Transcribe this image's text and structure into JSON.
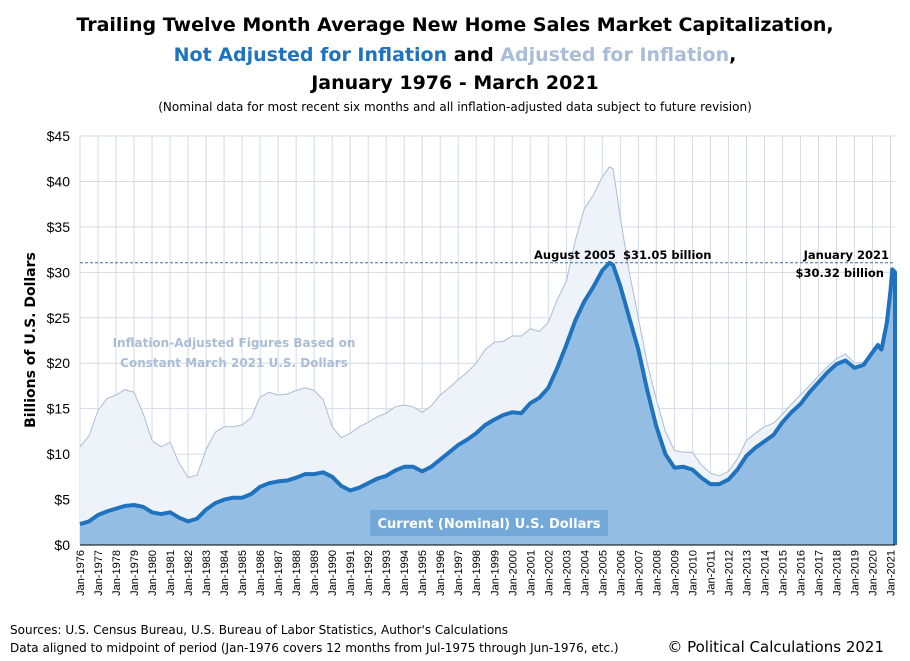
{
  "chart_data": {
    "type": "area",
    "title": {
      "line1": "Trailing Twelve Month Average New Home Sales Market Capitalization,",
      "line2_part1": "Not Adjusted for Inflation",
      "line2_part2": " and ",
      "line2_part3": "Adjusted for Inflation",
      "line2_part4": ",",
      "line3": "January 1976 - March 2021"
    },
    "subtitle": "(Nominal data for most recent six months and all inflation-adjusted data subject to future revision)",
    "ylabel": "Billions of U.S. Dollars",
    "ylim": [
      0,
      45
    ],
    "yticks": [
      0,
      5,
      10,
      15,
      20,
      25,
      30,
      35,
      40,
      45
    ],
    "ytick_labels": [
      "$0",
      "$5",
      "$10",
      "$15",
      "$20",
      "$25",
      "$30",
      "$35",
      "$40",
      "$45"
    ],
    "xlim": [
      1976.0,
      2021.25
    ],
    "xtick_labels": [
      "Jan-1976",
      "Jan-1977",
      "Jan-1978",
      "Jan-1979",
      "Jan-1980",
      "Jan-1981",
      "Jan-1982",
      "Jan-1983",
      "Jan-1984",
      "Jan-1985",
      "Jan-1986",
      "Jan-1987",
      "Jan-1988",
      "Jan-1989",
      "Jan-1990",
      "Jan-1991",
      "Jan-1992",
      "Jan-1993",
      "Jan-1994",
      "Jan-1995",
      "Jan-1996",
      "Jan-1997",
      "Jan-1998",
      "Jan-1999",
      "Jan-2000",
      "Jan-2001",
      "Jan-2002",
      "Jan-2003",
      "Jan-2004",
      "Jan-2005",
      "Jan-2006",
      "Jan-2007",
      "Jan-2008",
      "Jan-2009",
      "Jan-2010",
      "Jan-2011",
      "Jan-2012",
      "Jan-2013",
      "Jan-2014",
      "Jan-2015",
      "Jan-2016",
      "Jan-2017",
      "Jan-2018",
      "Jan-2019",
      "Jan-2020",
      "Jan-2021"
    ],
    "grid": true,
    "reference_line": {
      "value": 31.05,
      "style": "dashed"
    },
    "series": [
      {
        "name": "Adjusted for Inflation",
        "color": "#a9bdd6",
        "fill": "#eef3fa",
        "x": [
          1976.0,
          1976.5,
          1977.0,
          1977.5,
          1978.0,
          1978.5,
          1979.0,
          1979.5,
          1980.0,
          1980.5,
          1981.0,
          1981.5,
          1982.0,
          1982.5,
          1983.0,
          1983.5,
          1984.0,
          1984.5,
          1985.0,
          1985.5,
          1986.0,
          1986.5,
          1987.0,
          1987.5,
          1988.0,
          1988.5,
          1989.0,
          1989.5,
          1990.0,
          1990.5,
          1991.0,
          1991.5,
          1992.0,
          1992.5,
          1993.0,
          1993.5,
          1994.0,
          1994.5,
          1995.0,
          1995.5,
          1996.0,
          1996.5,
          1997.0,
          1997.5,
          1998.0,
          1998.5,
          1999.0,
          1999.5,
          2000.0,
          2000.5,
          2001.0,
          2001.5,
          2002.0,
          2002.5,
          2003.0,
          2003.5,
          2004.0,
          2004.5,
          2005.0,
          2005.4,
          2005.6,
          2006.0,
          2006.5,
          2007.0,
          2007.5,
          2008.0,
          2008.5,
          2009.0,
          2009.5,
          2010.0,
          2010.5,
          2011.0,
          2011.5,
          2012.0,
          2012.5,
          2013.0,
          2013.5,
          2014.0,
          2014.5,
          2015.0,
          2015.5,
          2016.0,
          2016.5,
          2017.0,
          2017.5,
          2018.0,
          2018.5,
          2019.0,
          2019.5,
          2020.0,
          2020.3,
          2020.5,
          2020.8,
          2021.0,
          2021.1,
          2021.25
        ],
        "values": [
          10.8,
          12.0,
          14.8,
          16.1,
          16.5,
          17.1,
          16.8,
          14.5,
          11.5,
          10.8,
          11.3,
          9.0,
          7.4,
          7.7,
          10.5,
          12.4,
          13.0,
          13.0,
          13.2,
          14.0,
          16.3,
          16.8,
          16.5,
          16.6,
          17.0,
          17.3,
          17.0,
          16.0,
          13.0,
          11.8,
          12.3,
          13.0,
          13.5,
          14.1,
          14.5,
          15.2,
          15.4,
          15.2,
          14.6,
          15.3,
          16.5,
          17.3,
          18.2,
          19.0,
          20.0,
          21.5,
          22.3,
          22.4,
          23.0,
          23.0,
          23.8,
          23.5,
          24.5,
          27.0,
          29.0,
          33.5,
          37.0,
          38.5,
          40.5,
          41.6,
          41.4,
          36.0,
          30.0,
          25.0,
          20.0,
          16.0,
          12.5,
          10.4,
          10.2,
          10.2,
          8.8,
          7.9,
          7.6,
          8.1,
          9.5,
          11.5,
          12.3,
          13.0,
          13.4,
          14.4,
          15.5,
          16.5,
          17.5,
          18.6,
          19.6,
          20.5,
          21.0,
          20.0,
          20.1,
          21.4,
          22.0,
          21.7,
          25.0,
          29.0,
          30.5,
          30.2
        ]
      },
      {
        "name": "Current (Nominal) U.S. Dollars",
        "color": "#1f73be",
        "fill": "#94bde3",
        "x": [
          1976.0,
          1976.5,
          1977.0,
          1977.5,
          1978.0,
          1978.5,
          1979.0,
          1979.5,
          1980.0,
          1980.5,
          1981.0,
          1981.5,
          1982.0,
          1982.5,
          1983.0,
          1983.5,
          1984.0,
          1984.5,
          1985.0,
          1985.5,
          1986.0,
          1986.5,
          1987.0,
          1987.5,
          1988.0,
          1988.5,
          1989.0,
          1989.5,
          1990.0,
          1990.5,
          1991.0,
          1991.5,
          1992.0,
          1992.5,
          1993.0,
          1993.5,
          1994.0,
          1994.5,
          1995.0,
          1995.5,
          1996.0,
          1996.5,
          1997.0,
          1997.5,
          1998.0,
          1998.5,
          1999.0,
          1999.5,
          2000.0,
          2000.5,
          2001.0,
          2001.5,
          2002.0,
          2002.5,
          2003.0,
          2003.5,
          2004.0,
          2004.5,
          2005.0,
          2005.4,
          2005.6,
          2006.0,
          2006.5,
          2007.0,
          2007.5,
          2008.0,
          2008.5,
          2009.0,
          2009.5,
          2010.0,
          2010.5,
          2011.0,
          2011.5,
          2012.0,
          2012.5,
          2013.0,
          2013.5,
          2014.0,
          2014.5,
          2015.0,
          2015.5,
          2016.0,
          2016.5,
          2017.0,
          2017.5,
          2018.0,
          2018.5,
          2019.0,
          2019.5,
          2020.0,
          2020.3,
          2020.5,
          2020.8,
          2021.0,
          2021.1,
          2021.25
        ],
        "values": [
          2.3,
          2.6,
          3.3,
          3.7,
          4.0,
          4.3,
          4.4,
          4.2,
          3.6,
          3.4,
          3.6,
          3.0,
          2.6,
          2.9,
          3.9,
          4.6,
          5.0,
          5.2,
          5.2,
          5.6,
          6.4,
          6.8,
          7.0,
          7.1,
          7.4,
          7.8,
          7.8,
          8.0,
          7.5,
          6.5,
          6.0,
          6.3,
          6.8,
          7.3,
          7.6,
          8.2,
          8.6,
          8.6,
          8.1,
          8.6,
          9.4,
          10.2,
          11.0,
          11.6,
          12.3,
          13.2,
          13.8,
          14.3,
          14.6,
          14.5,
          15.6,
          16.2,
          17.3,
          19.5,
          22.0,
          24.7,
          26.8,
          28.4,
          30.2,
          31.05,
          30.8,
          28.5,
          25.0,
          21.5,
          17.0,
          13.0,
          10.0,
          8.5,
          8.6,
          8.3,
          7.4,
          6.7,
          6.7,
          7.2,
          8.3,
          9.8,
          10.7,
          11.4,
          12.1,
          13.5,
          14.6,
          15.5,
          16.8,
          17.9,
          19.0,
          19.9,
          20.3,
          19.5,
          19.8,
          21.2,
          22.0,
          21.5,
          24.5,
          28.0,
          30.32,
          30.0
        ]
      }
    ],
    "annotations": {
      "peak_date": "August 2005",
      "peak_value": "$31.05 billion",
      "latest_date": "January 2021",
      "latest_value": "$30.32 billion",
      "inflation_note_line1": "Inflation-Adjusted Figures Based on",
      "inflation_note_line2": "Constant March 2021 U.S. Dollars",
      "nominal_label": "Current (Nominal) U.S. Dollars"
    },
    "colors": {
      "nominal_title": "#1f73be",
      "adjusted_title": "#a9bdd6",
      "reference_line": "#3b6fa0",
      "grid": "#d4dbe6"
    }
  },
  "footer": {
    "sources_line1": "Sources: U.S. Census Bureau, U.S. Bureau of Labor Statistics, Author's Calculations",
    "sources_line2": "Data aligned to midpoint of period (Jan-1976 covers 12 months from Jul-1975 through Jun-1976, etc.)",
    "copyright": "© Political Calculations 2021"
  }
}
